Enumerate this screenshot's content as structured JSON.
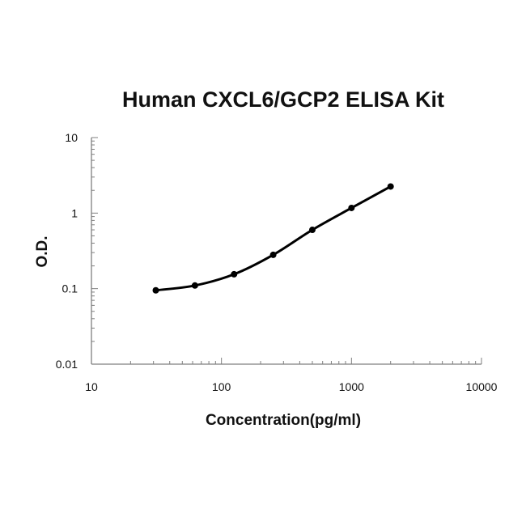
{
  "chart_data": {
    "type": "scatter",
    "title": "Human CXCL6/GCP2 ELISA Kit",
    "xlabel": "Concentration(pg/ml)",
    "ylabel": "O.D.",
    "xscale": "log",
    "yscale": "log",
    "xlim": [
      10,
      10000
    ],
    "ylim": [
      0.01,
      10
    ],
    "xticks": [
      {
        "value": 10,
        "label": "10"
      },
      {
        "value": 100,
        "label": "100"
      },
      {
        "value": 1000,
        "label": "1000"
      },
      {
        "value": 10000,
        "label": "10000"
      }
    ],
    "yticks": [
      {
        "value": 0.01,
        "label": "0.01"
      },
      {
        "value": 0.1,
        "label": "0.1"
      },
      {
        "value": 1,
        "label": "1"
      },
      {
        "value": 10,
        "label": "10"
      }
    ],
    "series": [
      {
        "x": [
          31.25,
          62.5,
          125,
          250,
          500,
          1000,
          2000
        ],
        "y": [
          0.095,
          0.11,
          0.155,
          0.28,
          0.6,
          1.17,
          2.25
        ]
      }
    ],
    "line": "smooth",
    "markers": "circle",
    "grid": false,
    "legend": false
  },
  "colors": {
    "series": "#000000",
    "axis": "#7f7f7f",
    "text": "#111111"
  }
}
